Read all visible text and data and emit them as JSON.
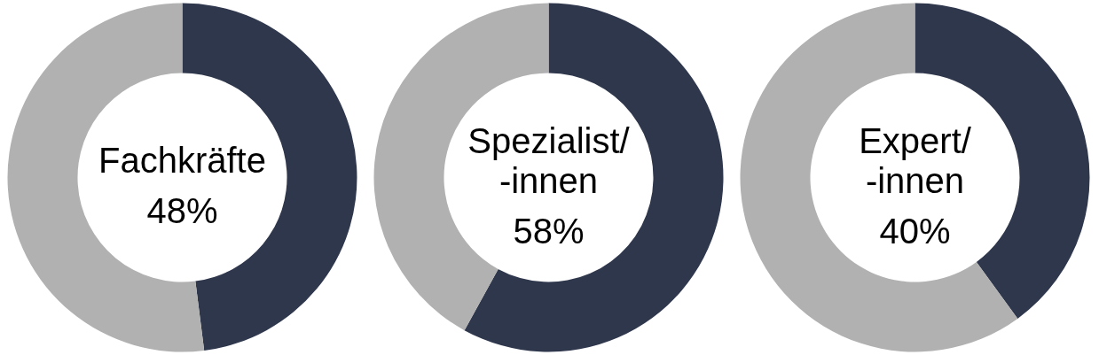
{
  "chart_data": [
    {
      "type": "donut",
      "title": "Fachkräfte",
      "categories": [
        null,
        null
      ],
      "values": [
        48,
        52
      ],
      "colors": [
        "#2f374d",
        "#b1b1b1"
      ],
      "annotations": [
        "48%"
      ]
    },
    {
      "type": "donut",
      "title": "Spezialist/\n-innen",
      "categories": [
        null,
        null
      ],
      "values": [
        58,
        42
      ],
      "colors": [
        "#2f374d",
        "#b1b1b1"
      ],
      "annotations": [
        "58%"
      ]
    },
    {
      "type": "donut",
      "title": "Expert/\n-innen",
      "categories": [
        null,
        null
      ],
      "values": [
        40,
        60
      ],
      "colors": [
        "#2f374d",
        "#b1b1b1"
      ],
      "annotations": [
        "40%"
      ]
    }
  ]
}
